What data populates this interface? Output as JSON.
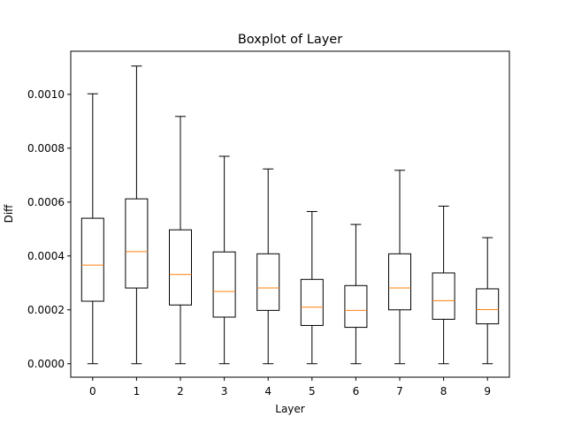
{
  "chart_data": {
    "type": "boxplot",
    "title": "Boxplot of Layer",
    "xlabel": "Layer",
    "ylabel": "Diff",
    "ylim": [
      -5e-05,
      0.00116
    ],
    "yticks": [
      0.0,
      0.0002,
      0.0004,
      0.0006,
      0.0008,
      0.001
    ],
    "ytick_labels": [
      "0.0000",
      "0.0002",
      "0.0004",
      "0.0006",
      "0.0008",
      "0.0010"
    ],
    "categories": [
      "0",
      "1",
      "2",
      "3",
      "4",
      "5",
      "6",
      "7",
      "8",
      "9"
    ],
    "boxes": [
      {
        "label": "0",
        "whislo": 0.0,
        "q1": 0.000232,
        "med": 0.000366,
        "q3": 0.00054,
        "whishi": 0.001002
      },
      {
        "label": "1",
        "whislo": 0.0,
        "q1": 0.000281,
        "med": 0.000416,
        "q3": 0.000612,
        "whishi": 0.001105
      },
      {
        "label": "2",
        "whislo": 0.0,
        "q1": 0.000218,
        "med": 0.000331,
        "q3": 0.000497,
        "whishi": 0.000918
      },
      {
        "label": "3",
        "whislo": 0.0,
        "q1": 0.000173,
        "med": 0.000268,
        "q3": 0.000415,
        "whishi": 0.00077
      },
      {
        "label": "4",
        "whislo": 0.0,
        "q1": 0.000198,
        "med": 0.000281,
        "q3": 0.000408,
        "whishi": 0.000723
      },
      {
        "label": "5",
        "whislo": 0.0,
        "q1": 0.000142,
        "med": 0.00021,
        "q3": 0.000313,
        "whishi": 0.000565
      },
      {
        "label": "6",
        "whislo": 0.0,
        "q1": 0.000135,
        "med": 0.000198,
        "q3": 0.00029,
        "whishi": 0.000517
      },
      {
        "label": "7",
        "whislo": 0.0,
        "q1": 0.0002,
        "med": 0.000281,
        "q3": 0.000408,
        "whishi": 0.000718
      },
      {
        "label": "8",
        "whislo": 0.0,
        "q1": 0.000165,
        "med": 0.000234,
        "q3": 0.000337,
        "whishi": 0.000585
      },
      {
        "label": "9",
        "whislo": 0.0,
        "q1": 0.000148,
        "med": 0.000201,
        "q3": 0.000278,
        "whishi": 0.000468
      }
    ],
    "colors": {
      "box": "#000000",
      "median": "#ff7f0e",
      "frame": "#000000"
    }
  }
}
